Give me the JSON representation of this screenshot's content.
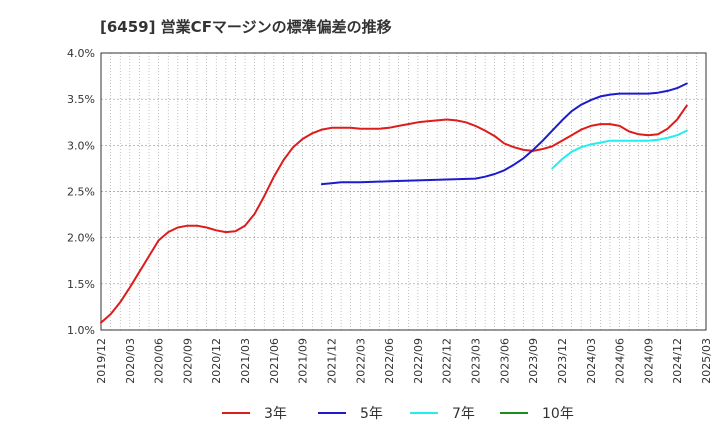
{
  "chart_data": {
    "type": "line",
    "title": "[6459]  営業CFマージンの標準偏差の推移",
    "xlabel": "",
    "ylabel": "",
    "x_ticks": [
      "2019/12",
      "2020/03",
      "2020/06",
      "2020/09",
      "2020/12",
      "2021/03",
      "2021/06",
      "2021/09",
      "2021/12",
      "2022/03",
      "2022/06",
      "2022/09",
      "2022/12",
      "2023/03",
      "2023/06",
      "2023/09",
      "2023/12",
      "2024/03",
      "2024/06",
      "2024/09",
      "2024/12",
      "2025/03"
    ],
    "y_ticks": [
      "1.0%",
      "1.5%",
      "2.0%",
      "2.5%",
      "3.0%",
      "3.5%",
      "4.0%"
    ],
    "ylim": [
      1.0,
      4.0
    ],
    "grid": true,
    "legend_position": "bottom",
    "series": [
      {
        "name": "3年",
        "color": "#dd1c1c",
        "points": [
          [
            "2019/12",
            1.08
          ],
          [
            "2020/01",
            1.17
          ],
          [
            "2020/02",
            1.3
          ],
          [
            "2020/03",
            1.46
          ],
          [
            "2020/04",
            1.63
          ],
          [
            "2020/05",
            1.8
          ],
          [
            "2020/06",
            1.97
          ],
          [
            "2020/07",
            2.06
          ],
          [
            "2020/08",
            2.11
          ],
          [
            "2020/09",
            2.13
          ],
          [
            "2020/10",
            2.13
          ],
          [
            "2020/11",
            2.11
          ],
          [
            "2020/12",
            2.08
          ],
          [
            "2021/01",
            2.06
          ],
          [
            "2021/02",
            2.07
          ],
          [
            "2021/03",
            2.13
          ],
          [
            "2021/04",
            2.26
          ],
          [
            "2021/05",
            2.45
          ],
          [
            "2021/06",
            2.66
          ],
          [
            "2021/07",
            2.84
          ],
          [
            "2021/08",
            2.98
          ],
          [
            "2021/09",
            3.07
          ],
          [
            "2021/10",
            3.13
          ],
          [
            "2021/11",
            3.17
          ],
          [
            "2021/12",
            3.19
          ],
          [
            "2022/01",
            3.19
          ],
          [
            "2022/02",
            3.19
          ],
          [
            "2022/03",
            3.18
          ],
          [
            "2022/04",
            3.18
          ],
          [
            "2022/05",
            3.18
          ],
          [
            "2022/06",
            3.19
          ],
          [
            "2022/07",
            3.21
          ],
          [
            "2022/08",
            3.23
          ],
          [
            "2022/09",
            3.25
          ],
          [
            "2022/10",
            3.26
          ],
          [
            "2022/11",
            3.27
          ],
          [
            "2022/12",
            3.28
          ],
          [
            "2023/01",
            3.27
          ],
          [
            "2023/02",
            3.25
          ],
          [
            "2023/03",
            3.21
          ],
          [
            "2023/04",
            3.16
          ],
          [
            "2023/05",
            3.1
          ],
          [
            "2023/06",
            3.02
          ],
          [
            "2023/07",
            2.98
          ],
          [
            "2023/08",
            2.95
          ],
          [
            "2023/09",
            2.94
          ],
          [
            "2023/10",
            2.96
          ],
          [
            "2023/11",
            2.99
          ],
          [
            "2023/12",
            3.05
          ],
          [
            "2024/01",
            3.11
          ],
          [
            "2024/02",
            3.17
          ],
          [
            "2024/03",
            3.21
          ],
          [
            "2024/04",
            3.23
          ],
          [
            "2024/05",
            3.23
          ],
          [
            "2024/06",
            3.21
          ],
          [
            "2024/07",
            3.15
          ],
          [
            "2024/08",
            3.12
          ],
          [
            "2024/09",
            3.11
          ],
          [
            "2024/10",
            3.12
          ],
          [
            "2024/11",
            3.18
          ],
          [
            "2024/12",
            3.28
          ],
          [
            "2025/01",
            3.43
          ]
        ]
      },
      {
        "name": "5年",
        "color": "#1c1ccc",
        "points": [
          [
            "2021/11",
            2.58
          ],
          [
            "2021/12",
            2.59
          ],
          [
            "2022/01",
            2.6
          ],
          [
            "2022/03",
            2.6
          ],
          [
            "2022/06",
            2.61
          ],
          [
            "2022/09",
            2.62
          ],
          [
            "2022/12",
            2.63
          ],
          [
            "2023/03",
            2.64
          ],
          [
            "2023/04",
            2.66
          ],
          [
            "2023/05",
            2.69
          ],
          [
            "2023/06",
            2.73
          ],
          [
            "2023/07",
            2.79
          ],
          [
            "2023/08",
            2.86
          ],
          [
            "2023/09",
            2.95
          ],
          [
            "2023/10",
            3.05
          ],
          [
            "2023/11",
            3.16
          ],
          [
            "2023/12",
            3.27
          ],
          [
            "2024/01",
            3.37
          ],
          [
            "2024/02",
            3.44
          ],
          [
            "2024/03",
            3.49
          ],
          [
            "2024/04",
            3.53
          ],
          [
            "2024/05",
            3.55
          ],
          [
            "2024/06",
            3.56
          ],
          [
            "2024/07",
            3.56
          ],
          [
            "2024/08",
            3.56
          ],
          [
            "2024/09",
            3.56
          ],
          [
            "2024/10",
            3.57
          ],
          [
            "2024/11",
            3.59
          ],
          [
            "2024/12",
            3.62
          ],
          [
            "2025/01",
            3.67
          ]
        ]
      },
      {
        "name": "7年",
        "color": "#22eef0",
        "points": [
          [
            "2023/11",
            2.75
          ],
          [
            "2023/12",
            2.85
          ],
          [
            "2024/01",
            2.93
          ],
          [
            "2024/02",
            2.98
          ],
          [
            "2024/03",
            3.01
          ],
          [
            "2024/04",
            3.03
          ],
          [
            "2024/05",
            3.05
          ],
          [
            "2024/06",
            3.05
          ],
          [
            "2024/07",
            3.05
          ],
          [
            "2024/08",
            3.05
          ],
          [
            "2024/09",
            3.05
          ],
          [
            "2024/10",
            3.06
          ],
          [
            "2024/11",
            3.08
          ],
          [
            "2024/12",
            3.11
          ],
          [
            "2025/01",
            3.16
          ]
        ]
      },
      {
        "name": "10年",
        "color": "#1c8c1c",
        "points": []
      }
    ]
  }
}
